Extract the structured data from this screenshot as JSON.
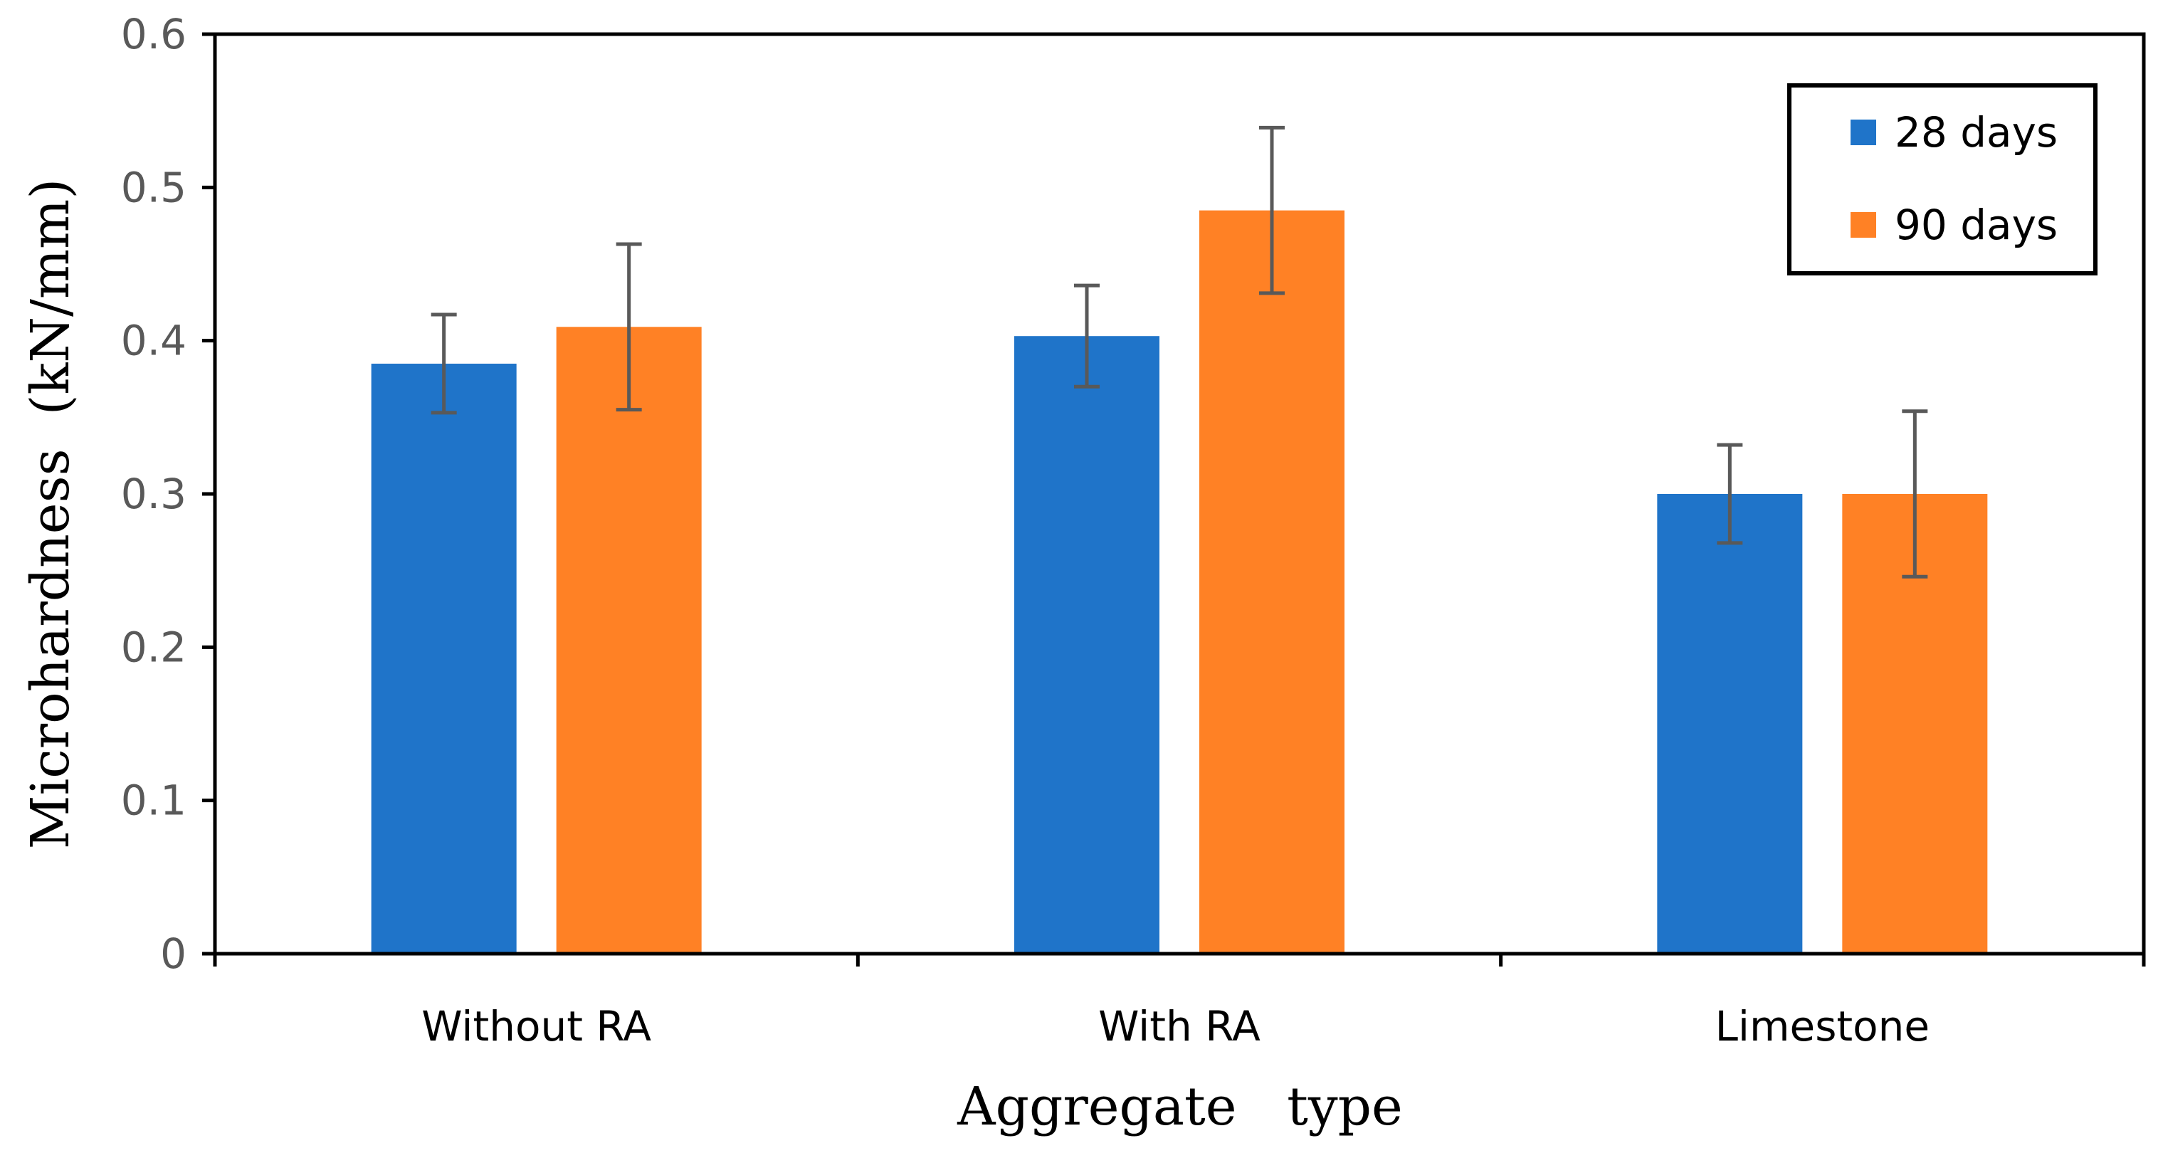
{
  "chart_data": {
    "type": "bar",
    "title": "",
    "xlabel": "Aggregate   type",
    "ylabel": "Microhardness  (kN/mm)",
    "ylim": [
      0,
      0.6
    ],
    "yticks": [
      "0",
      "0.1",
      "0.2",
      "0.3",
      "0.4",
      "0.5",
      "0.6"
    ],
    "categories": [
      "Without RA",
      "With RA",
      "Limestone"
    ],
    "legend_position": "top-right",
    "series": [
      {
        "name": "28 days",
        "color": "#1F74C9",
        "values": [
          0.385,
          0.403,
          0.3
        ],
        "errors": [
          0.032,
          0.033,
          0.032
        ]
      },
      {
        "name": "90 days",
        "color": "#FF8125",
        "values": [
          0.409,
          0.485,
          0.3
        ],
        "errors": [
          0.054,
          0.054,
          0.054
        ]
      }
    ]
  }
}
